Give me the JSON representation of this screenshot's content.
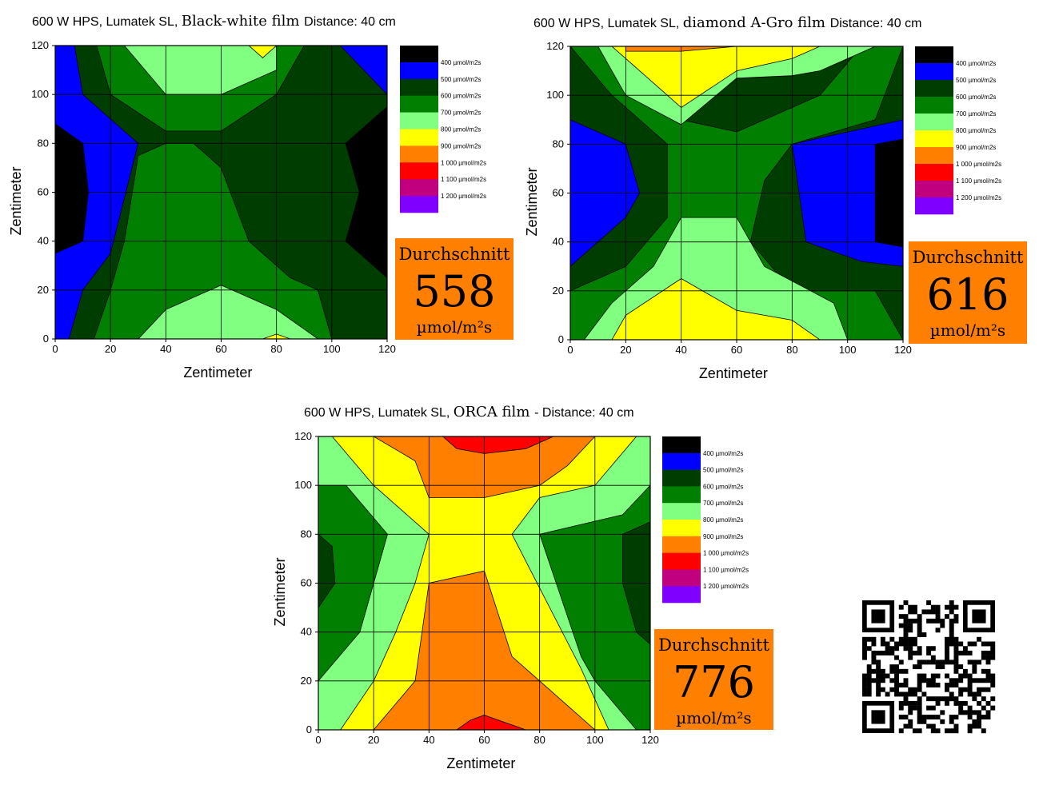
{
  "colors": {
    "black": "#000000",
    "blue": "#0000ff",
    "darkgreen": "#003d00",
    "green": "#007f00",
    "lightgreen": "#80ff80",
    "yellow": "#ffff00",
    "orange": "#ff8000",
    "red": "#ff0000",
    "magenta": "#c0007f",
    "violet": "#8000ff",
    "avg_box": "#ff8000"
  },
  "legend_entries": [
    "400 µmol/m2s",
    "500 µmol/m2s",
    "600 µmol/m2s",
    "700 µmol/m2s",
    "800 µmol/m2s",
    "900 µmol/m2s",
    "1 000 µmol/m2s",
    "1 100 µmol/m2s",
    "1 200 µmol/m2s"
  ],
  "legend_colors": [
    "black",
    "blue",
    "darkgreen",
    "green",
    "lightgreen",
    "yellow",
    "orange",
    "red",
    "magenta",
    "violet"
  ],
  "average_label": "Durchschnitt",
  "average_unit": "µmol/m²s",
  "qr_code": "qr-code",
  "chart_data": [
    {
      "type": "heatmap",
      "title_sans": "600 W HPS, Lumatek SL,",
      "title_serif": "Black-white film",
      "title_suffix": "Distance: 40 cm",
      "xlabel": "Zentimeter",
      "ylabel": "Zentimeter",
      "xlim": [
        0,
        120
      ],
      "ylim": [
        0,
        120
      ],
      "xticks": [
        "0",
        "20",
        "40",
        "60",
        "80",
        "100",
        "120"
      ],
      "yticks": [
        "0",
        "20",
        "40",
        "60",
        "80",
        "100",
        "120"
      ],
      "grid": true,
      "average": "558",
      "fill": "blue",
      "regions": [
        {
          "color": "black",
          "points": [
            [
              0,
              88
            ],
            [
              10,
              80
            ],
            [
              12,
              60
            ],
            [
              10,
              40
            ],
            [
              0,
              35
            ]
          ]
        },
        {
          "color": "black",
          "points": [
            [
              120,
              95
            ],
            [
              105,
              80
            ],
            [
              105,
              40
            ],
            [
              120,
              25
            ]
          ]
        },
        {
          "color": "darkgreen",
          "points": [
            [
              7,
              120
            ],
            [
              103,
              120
            ],
            [
              120,
              100
            ],
            [
              120,
              95
            ],
            [
              105,
              80
            ],
            [
              110,
              60
            ],
            [
              105,
              40
            ],
            [
              120,
              25
            ],
            [
              120,
              0
            ],
            [
              5,
              0
            ],
            [
              10,
              20
            ],
            [
              20,
              35
            ],
            [
              30,
              80
            ],
            [
              10,
              100
            ]
          ]
        },
        {
          "color": "green",
          "points": [
            [
              15,
              120
            ],
            [
              90,
              120
            ],
            [
              80,
              100
            ],
            [
              60,
              85
            ],
            [
              40,
              85
            ],
            [
              20,
              100
            ]
          ]
        },
        {
          "color": "green",
          "points": [
            [
              14,
              0
            ],
            [
              100,
              0
            ],
            [
              95,
              20
            ],
            [
              85,
              25
            ],
            [
              70,
              40
            ],
            [
              60,
              70
            ],
            [
              50,
              80
            ],
            [
              40,
              80
            ],
            [
              30,
              75
            ],
            [
              25,
              40
            ],
            [
              20,
              20
            ]
          ]
        },
        {
          "color": "lightgreen",
          "points": [
            [
              25,
              120
            ],
            [
              80,
              120
            ],
            [
              80,
              110
            ],
            [
              60,
              100
            ],
            [
              40,
              100
            ]
          ]
        },
        {
          "color": "lightgreen",
          "points": [
            [
              30,
              0
            ],
            [
              95,
              0
            ],
            [
              80,
              12
            ],
            [
              60,
              22
            ],
            [
              40,
              12
            ]
          ]
        },
        {
          "color": "yellow",
          "points": [
            [
              70,
              120
            ],
            [
              80,
              120
            ],
            [
              75,
              115
            ]
          ]
        },
        {
          "color": "yellow",
          "points": [
            [
              75,
              0
            ],
            [
              80,
              2
            ],
            [
              85,
              0
            ]
          ]
        }
      ]
    },
    {
      "type": "heatmap",
      "title_sans": "600 W HPS, Lumatek SL,",
      "title_serif": "diamond A-Gro film",
      "title_suffix": "Distance: 40 cm",
      "xlabel": "Zentimeter",
      "ylabel": "Zentimeter",
      "xlim": [
        0,
        120
      ],
      "ylim": [
        0,
        120
      ],
      "xticks": [
        "0",
        "20",
        "40",
        "60",
        "80",
        "100",
        "120"
      ],
      "yticks": [
        "0",
        "20",
        "40",
        "60",
        "80",
        "100",
        "120"
      ],
      "grid": true,
      "average": "616",
      "fill": "darkgreen",
      "regions": [
        {
          "color": "blue",
          "points": [
            [
              0,
              90
            ],
            [
              20,
              80
            ],
            [
              25,
              60
            ],
            [
              20,
              50
            ],
            [
              0,
              30
            ]
          ]
        },
        {
          "color": "blue",
          "points": [
            [
              120,
              90
            ],
            [
              80,
              80
            ],
            [
              85,
              40
            ],
            [
              105,
              32
            ],
            [
              120,
              30
            ]
          ]
        },
        {
          "color": "black",
          "points": [
            [
              120,
              82
            ],
            [
              110,
              80
            ],
            [
              110,
              40
            ],
            [
              120,
              38
            ]
          ]
        },
        {
          "color": "green",
          "points": [
            [
              0,
              120
            ],
            [
              35,
              120
            ],
            [
              40,
              90
            ],
            [
              60,
              85
            ],
            [
              80,
              95
            ],
            [
              90,
              100
            ],
            [
              105,
              120
            ],
            [
              120,
              120
            ],
            [
              110,
              90
            ],
            [
              80,
              80
            ],
            [
              70,
              65
            ],
            [
              65,
              40
            ],
            [
              80,
              20
            ],
            [
              110,
              20
            ],
            [
              120,
              0
            ],
            [
              0,
              0
            ],
            [
              0,
              20
            ],
            [
              20,
              30
            ],
            [
              35,
              50
            ],
            [
              35,
              80
            ],
            [
              15,
              100
            ]
          ]
        },
        {
          "color": "lightgreen",
          "points": [
            [
              10,
              120
            ],
            [
              110,
              120
            ],
            [
              90,
              110
            ],
            [
              80,
              108
            ],
            [
              60,
              107
            ],
            [
              40,
              88
            ],
            [
              20,
              100
            ]
          ]
        },
        {
          "color": "lightgreen",
          "points": [
            [
              5,
              0
            ],
            [
              100,
              0
            ],
            [
              95,
              15
            ],
            [
              70,
              30
            ],
            [
              60,
              50
            ],
            [
              40,
              50
            ],
            [
              30,
              30
            ],
            [
              15,
              15
            ]
          ]
        },
        {
          "color": "yellow",
          "points": [
            [
              15,
              120
            ],
            [
              90,
              120
            ],
            [
              80,
              115
            ],
            [
              60,
              110
            ],
            [
              40,
              95
            ],
            [
              25,
              110
            ]
          ]
        },
        {
          "color": "yellow",
          "points": [
            [
              15,
              0
            ],
            [
              90,
              0
            ],
            [
              80,
              8
            ],
            [
              60,
              12
            ],
            [
              40,
              25
            ],
            [
              20,
              10
            ]
          ]
        },
        {
          "color": "orange",
          "points": [
            [
              20,
              120
            ],
            [
              60,
              120
            ],
            [
              40,
              118
            ],
            [
              20,
              118
            ]
          ]
        }
      ]
    },
    {
      "type": "heatmap",
      "title_sans": "600 W HPS, Lumatek SL,",
      "title_serif": "ORCA film",
      "title_suffix": "- Distance: 40 cm",
      "xlabel": "Zentimeter",
      "ylabel": "Zentimeter",
      "xlim": [
        0,
        120
      ],
      "ylim": [
        0,
        120
      ],
      "xticks": [
        "0",
        "20",
        "40",
        "60",
        "80",
        "100",
        "120"
      ],
      "yticks": [
        "0",
        "20",
        "40",
        "60",
        "80",
        "100",
        "120"
      ],
      "grid": true,
      "average": "776",
      "fill": "green",
      "regions": [
        {
          "color": "darkgreen",
          "points": [
            [
              0,
              80
            ],
            [
              5,
              75
            ],
            [
              6,
              60
            ],
            [
              0,
              50
            ]
          ]
        },
        {
          "color": "darkgreen",
          "points": [
            [
              120,
              85
            ],
            [
              110,
              80
            ],
            [
              110,
              60
            ],
            [
              115,
              40
            ],
            [
              120,
              35
            ]
          ]
        },
        {
          "color": "lightgreen",
          "points": [
            [
              0,
              120
            ],
            [
              120,
              120
            ],
            [
              120,
              100
            ],
            [
              110,
              88
            ],
            [
              80,
              80
            ],
            [
              95,
              30
            ],
            [
              100,
              20
            ],
            [
              115,
              0
            ],
            [
              0,
              0
            ],
            [
              0,
              20
            ],
            [
              15,
              40
            ],
            [
              20,
              60
            ],
            [
              25,
              80
            ],
            [
              10,
              100
            ],
            [
              0,
              100
            ]
          ]
        },
        {
          "color": "yellow",
          "points": [
            [
              5,
              120
            ],
            [
              115,
              120
            ],
            [
              100,
              100
            ],
            [
              80,
              95
            ],
            [
              70,
              80
            ],
            [
              95,
              25
            ],
            [
              105,
              0
            ],
            [
              8,
              0
            ],
            [
              20,
              20
            ],
            [
              28,
              40
            ],
            [
              35,
              60
            ],
            [
              40,
              80
            ],
            [
              20,
              100
            ]
          ]
        },
        {
          "color": "orange",
          "points": [
            [
              20,
              120
            ],
            [
              100,
              120
            ],
            [
              90,
              108
            ],
            [
              80,
              100
            ],
            [
              60,
              95
            ],
            [
              40,
              95
            ],
            [
              35,
              110
            ]
          ]
        },
        {
          "color": "orange",
          "points": [
            [
              20,
              0
            ],
            [
              100,
              0
            ],
            [
              80,
              20
            ],
            [
              70,
              30
            ],
            [
              60,
              65
            ],
            [
              40,
              60
            ],
            [
              35,
              20
            ]
          ]
        },
        {
          "color": "red",
          "points": [
            [
              45,
              120
            ],
            [
              85,
              120
            ],
            [
              75,
              115
            ],
            [
              60,
              113
            ],
            [
              50,
              115
            ]
          ]
        },
        {
          "color": "red",
          "points": [
            [
              50,
              0
            ],
            [
              75,
              0
            ],
            [
              65,
              4
            ],
            [
              60,
              6
            ],
            [
              55,
              4
            ]
          ]
        }
      ]
    }
  ]
}
